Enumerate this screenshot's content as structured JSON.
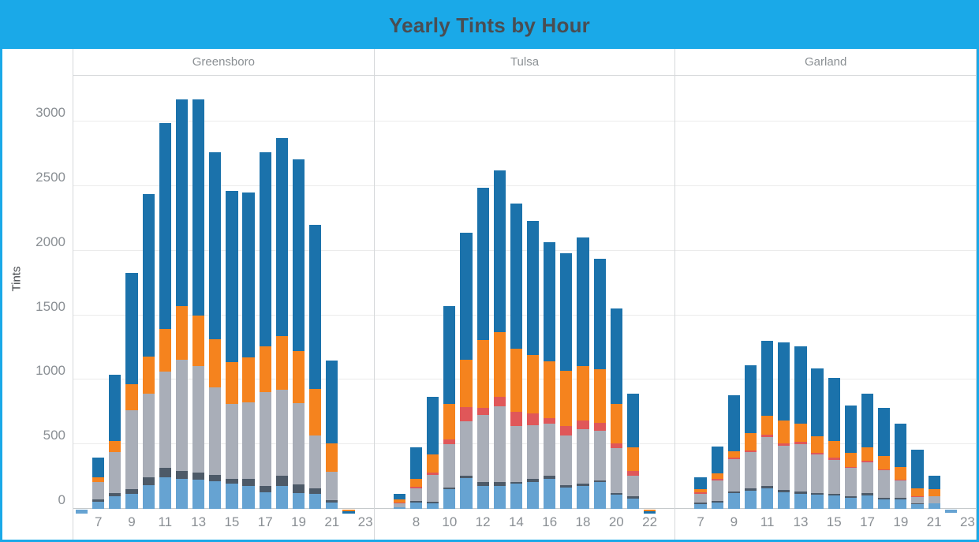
{
  "title": "Yearly Tints by Hour",
  "y_axis": {
    "label": "Tints",
    "ticks": [
      0,
      500,
      1000,
      1500,
      2000,
      2500,
      3000
    ],
    "max": 3355
  },
  "colors": {
    "accent_bar": "#1aa9e8",
    "title_text": "#4a4d52",
    "header_text": "#8b9094",
    "gridline": "#ebebeb"
  },
  "chart_data": {
    "type": "bar",
    "stacked": true,
    "title": "Yearly Tints by Hour",
    "ylabel": "Tints",
    "xlabel_hours": true,
    "hour_range": [
      6,
      23
    ],
    "ylim": [
      0,
      3355
    ],
    "legend": "none",
    "series": [
      {
        "key": "light_blue",
        "name": "series-light-blue",
        "color": "#66a3d2"
      },
      {
        "key": "dark_slate",
        "name": "series-dark-slate",
        "color": "#4d5a68"
      },
      {
        "key": "gray",
        "name": "series-gray",
        "color": "#a9aeb8"
      },
      {
        "key": "red",
        "name": "series-red",
        "color": "#e05759"
      },
      {
        "key": "orange",
        "name": "series-orange",
        "color": "#f5831e"
      },
      {
        "key": "blue",
        "name": "series-blue",
        "color": "#1b72ab"
      }
    ],
    "panels": [
      {
        "city": "Greensboro",
        "x_ticks": [
          7,
          9,
          11,
          13,
          15,
          17,
          19,
          21,
          23
        ],
        "bars": [
          {
            "hour": 6,
            "values": {
              "light_blue": -30
            }
          },
          {
            "hour": 7,
            "values": {
              "light_blue": 55,
              "dark_slate": 20,
              "gray": 135,
              "orange": 35,
              "blue": 150
            }
          },
          {
            "hour": 8,
            "values": {
              "light_blue": 100,
              "dark_slate": 25,
              "gray": 315,
              "orange": 85,
              "blue": 515
            }
          },
          {
            "hour": 9,
            "values": {
              "light_blue": 115,
              "dark_slate": 40,
              "gray": 610,
              "orange": 200,
              "blue": 865
            }
          },
          {
            "hour": 10,
            "values": {
              "light_blue": 185,
              "dark_slate": 60,
              "gray": 650,
              "orange": 285,
              "blue": 1260
            }
          },
          {
            "hour": 11,
            "values": {
              "light_blue": 245,
              "dark_slate": 70,
              "gray": 750,
              "orange": 330,
              "blue": 1595
            }
          },
          {
            "hour": 12,
            "values": {
              "light_blue": 230,
              "dark_slate": 65,
              "gray": 860,
              "orange": 415,
              "blue": 1600
            }
          },
          {
            "hour": 13,
            "values": {
              "light_blue": 225,
              "dark_slate": 55,
              "gray": 825,
              "orange": 395,
              "blue": 1670
            }
          },
          {
            "hour": 14,
            "values": {
              "light_blue": 215,
              "dark_slate": 50,
              "gray": 675,
              "orange": 375,
              "blue": 1445
            }
          },
          {
            "hour": 15,
            "values": {
              "light_blue": 195,
              "dark_slate": 35,
              "gray": 580,
              "orange": 325,
              "blue": 1325
            }
          },
          {
            "hour": 16,
            "values": {
              "light_blue": 180,
              "dark_slate": 55,
              "gray": 590,
              "orange": 350,
              "blue": 1275
            }
          },
          {
            "hour": 17,
            "values": {
              "light_blue": 130,
              "dark_slate": 50,
              "gray": 725,
              "orange": 355,
              "blue": 1500
            }
          },
          {
            "hour": 18,
            "values": {
              "light_blue": 175,
              "dark_slate": 80,
              "gray": 670,
              "orange": 415,
              "blue": 1530
            }
          },
          {
            "hour": 19,
            "values": {
              "light_blue": 120,
              "dark_slate": 70,
              "gray": 630,
              "orange": 405,
              "blue": 1485
            }
          },
          {
            "hour": 20,
            "values": {
              "light_blue": 115,
              "dark_slate": 45,
              "gray": 410,
              "orange": 360,
              "blue": 1270
            }
          },
          {
            "hour": 21,
            "values": {
              "light_blue": 50,
              "dark_slate": 20,
              "gray": 215,
              "orange": 220,
              "blue": 645
            }
          },
          {
            "hour": 22,
            "values": {
              "orange": -15,
              "blue": -15
            }
          }
        ]
      },
      {
        "city": "Tulsa",
        "x_ticks": [
          8,
          10,
          12,
          14,
          16,
          18,
          20,
          22
        ],
        "bars": [
          {
            "hour": 7,
            "values": {
              "light_blue": 15,
              "gray": 27,
              "red": 10,
              "orange": 20,
              "blue": 43
            }
          },
          {
            "hour": 8,
            "values": {
              "light_blue": 50,
              "dark_slate": 10,
              "gray": 100,
              "red": 10,
              "orange": 60,
              "blue": 245
            }
          },
          {
            "hour": 9,
            "values": {
              "light_blue": 40,
              "dark_slate": 15,
              "gray": 205,
              "red": 20,
              "orange": 140,
              "blue": 445
            }
          },
          {
            "hour": 10,
            "values": {
              "light_blue": 150,
              "dark_slate": 15,
              "gray": 335,
              "red": 40,
              "orange": 275,
              "blue": 755
            }
          },
          {
            "hour": 11,
            "values": {
              "light_blue": 240,
              "dark_slate": 15,
              "gray": 425,
              "red": 110,
              "orange": 365,
              "blue": 985
            }
          },
          {
            "hour": 12,
            "values": {
              "light_blue": 175,
              "dark_slate": 30,
              "gray": 520,
              "red": 60,
              "orange": 520,
              "blue": 1185
            }
          },
          {
            "hour": 13,
            "values": {
              "light_blue": 180,
              "dark_slate": 25,
              "gray": 590,
              "red": 75,
              "orange": 500,
              "blue": 1250
            }
          },
          {
            "hour": 14,
            "values": {
              "light_blue": 195,
              "dark_slate": 15,
              "gray": 430,
              "red": 110,
              "orange": 490,
              "blue": 1125
            }
          },
          {
            "hour": 15,
            "values": {
              "light_blue": 210,
              "dark_slate": 20,
              "gray": 420,
              "red": 90,
              "orange": 450,
              "blue": 1040
            }
          },
          {
            "hour": 16,
            "values": {
              "light_blue": 235,
              "dark_slate": 20,
              "gray": 405,
              "red": 45,
              "orange": 435,
              "blue": 925
            }
          },
          {
            "hour": 17,
            "values": {
              "light_blue": 165,
              "dark_slate": 20,
              "gray": 385,
              "red": 70,
              "orange": 430,
              "blue": 910
            }
          },
          {
            "hour": 18,
            "values": {
              "light_blue": 175,
              "dark_slate": 20,
              "gray": 425,
              "red": 65,
              "orange": 420,
              "blue": 995
            }
          },
          {
            "hour": 19,
            "values": {
              "light_blue": 205,
              "dark_slate": 15,
              "gray": 385,
              "red": 60,
              "orange": 415,
              "blue": 855
            }
          },
          {
            "hour": 20,
            "values": {
              "light_blue": 110,
              "dark_slate": 15,
              "gray": 345,
              "red": 35,
              "orange": 310,
              "blue": 735
            }
          },
          {
            "hour": 21,
            "values": {
              "light_blue": 80,
              "dark_slate": 15,
              "gray": 160,
              "red": 40,
              "orange": 180,
              "blue": 415
            }
          },
          {
            "hour": 22,
            "values": {
              "orange": -15,
              "blue": -15
            }
          }
        ]
      },
      {
        "city": "Garland",
        "x_ticks": [
          7,
          9,
          11,
          13,
          15,
          17,
          19,
          21,
          23
        ],
        "bars": [
          {
            "hour": 7,
            "values": {
              "light_blue": 37,
              "dark_slate": 10,
              "gray": 69,
              "red": 12,
              "orange": 25,
              "blue": 89
            }
          },
          {
            "hour": 8,
            "values": {
              "light_blue": 47,
              "dark_slate": 14,
              "gray": 161,
              "red": 8,
              "orange": 45,
              "blue": 210
            }
          },
          {
            "hour": 9,
            "values": {
              "light_blue": 120,
              "dark_slate": 12,
              "gray": 255,
              "red": 12,
              "orange": 47,
              "blue": 434
            }
          },
          {
            "hour": 10,
            "values": {
              "light_blue": 143,
              "dark_slate": 14,
              "gray": 281,
              "red": 16,
              "orange": 131,
              "blue": 530
            }
          },
          {
            "hour": 11,
            "values": {
              "light_blue": 157,
              "dark_slate": 20,
              "gray": 377,
              "red": 20,
              "orange": 145,
              "blue": 585
            }
          },
          {
            "hour": 12,
            "values": {
              "light_blue": 128,
              "dark_slate": 21,
              "gray": 340,
              "red": 20,
              "orange": 173,
              "blue": 607
            }
          },
          {
            "hour": 13,
            "values": {
              "light_blue": 116,
              "dark_slate": 20,
              "gray": 367,
              "red": 16,
              "orange": 139,
              "blue": 599
            }
          },
          {
            "hour": 14,
            "values": {
              "light_blue": 108,
              "dark_slate": 14,
              "gray": 300,
              "red": 12,
              "orange": 130,
              "blue": 522
            }
          },
          {
            "hour": 15,
            "values": {
              "light_blue": 102,
              "dark_slate": 14,
              "gray": 261,
              "red": 20,
              "orange": 126,
              "blue": 489
            }
          },
          {
            "hour": 16,
            "values": {
              "light_blue": 84,
              "dark_slate": 12,
              "gray": 220,
              "red": 10,
              "orange": 108,
              "blue": 364
            }
          },
          {
            "hour": 17,
            "values": {
              "light_blue": 102,
              "dark_slate": 20,
              "gray": 239,
              "red": 12,
              "orange": 106,
              "blue": 411
            }
          },
          {
            "hour": 18,
            "values": {
              "light_blue": 75,
              "dark_slate": 13,
              "gray": 211,
              "red": 6,
              "orange": 102,
              "blue": 375
            }
          },
          {
            "hour": 19,
            "values": {
              "light_blue": 75,
              "dark_slate": 13,
              "gray": 130,
              "red": 6,
              "orange": 102,
              "blue": 336
            }
          },
          {
            "hour": 20,
            "values": {
              "light_blue": 35,
              "dark_slate": 6,
              "gray": 51,
              "red": 4,
              "orange": 61,
              "blue": 301
            }
          },
          {
            "hour": 21,
            "values": {
              "light_blue": 41,
              "gray": 55,
              "orange": 57,
              "blue": 106
            }
          },
          {
            "hour": 22,
            "values": {
              "light_blue": -25
            }
          }
        ]
      }
    ]
  }
}
